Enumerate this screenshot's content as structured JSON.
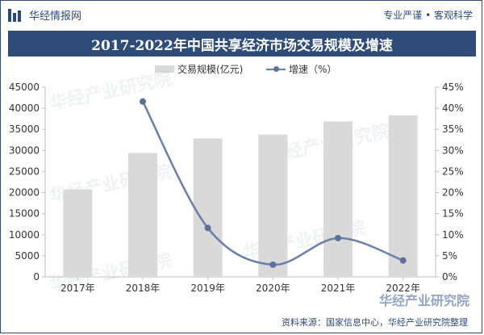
{
  "header": {
    "brand_name": "华经情报网",
    "slogan": "专业严谨 • 客观科学"
  },
  "watermark": "华经产业研究院",
  "source": "资料来源：国家信息中心，华经产业研究院整理",
  "colors": {
    "title_bg": "#2f4c78",
    "bar": "#d9d9d9",
    "line": "#6a7fa7",
    "marker": "#5c7198"
  },
  "chart_data": {
    "type": "bar",
    "title": "2017-2022年中国共享经济市场交易规模及增速",
    "categories": [
      "2017年",
      "2018年",
      "2019年",
      "2020年",
      "2021年",
      "2022年"
    ],
    "series": [
      {
        "name": "交易规模(亿元)",
        "type": "bar",
        "axis": "left",
        "values": [
          20772,
          29420,
          32828,
          33773,
          36881,
          38320
        ]
      },
      {
        "name": "增速（%）",
        "type": "line",
        "axis": "right",
        "values": [
          null,
          41.6,
          11.6,
          2.9,
          9.2,
          3.9
        ]
      }
    ],
    "y_left": {
      "ylim": [
        0,
        45000
      ],
      "ticks": [
        "0",
        "5000",
        "10000",
        "15000",
        "20000",
        "25000",
        "30000",
        "35000",
        "40000",
        "45000"
      ]
    },
    "y_right": {
      "ylim": [
        0,
        45
      ],
      "ticks": [
        "0%",
        "5%",
        "10%",
        "15%",
        "20%",
        "25%",
        "30%",
        "35%",
        "40%",
        "45%"
      ]
    },
    "legend_position": "top-center",
    "grid": false
  }
}
